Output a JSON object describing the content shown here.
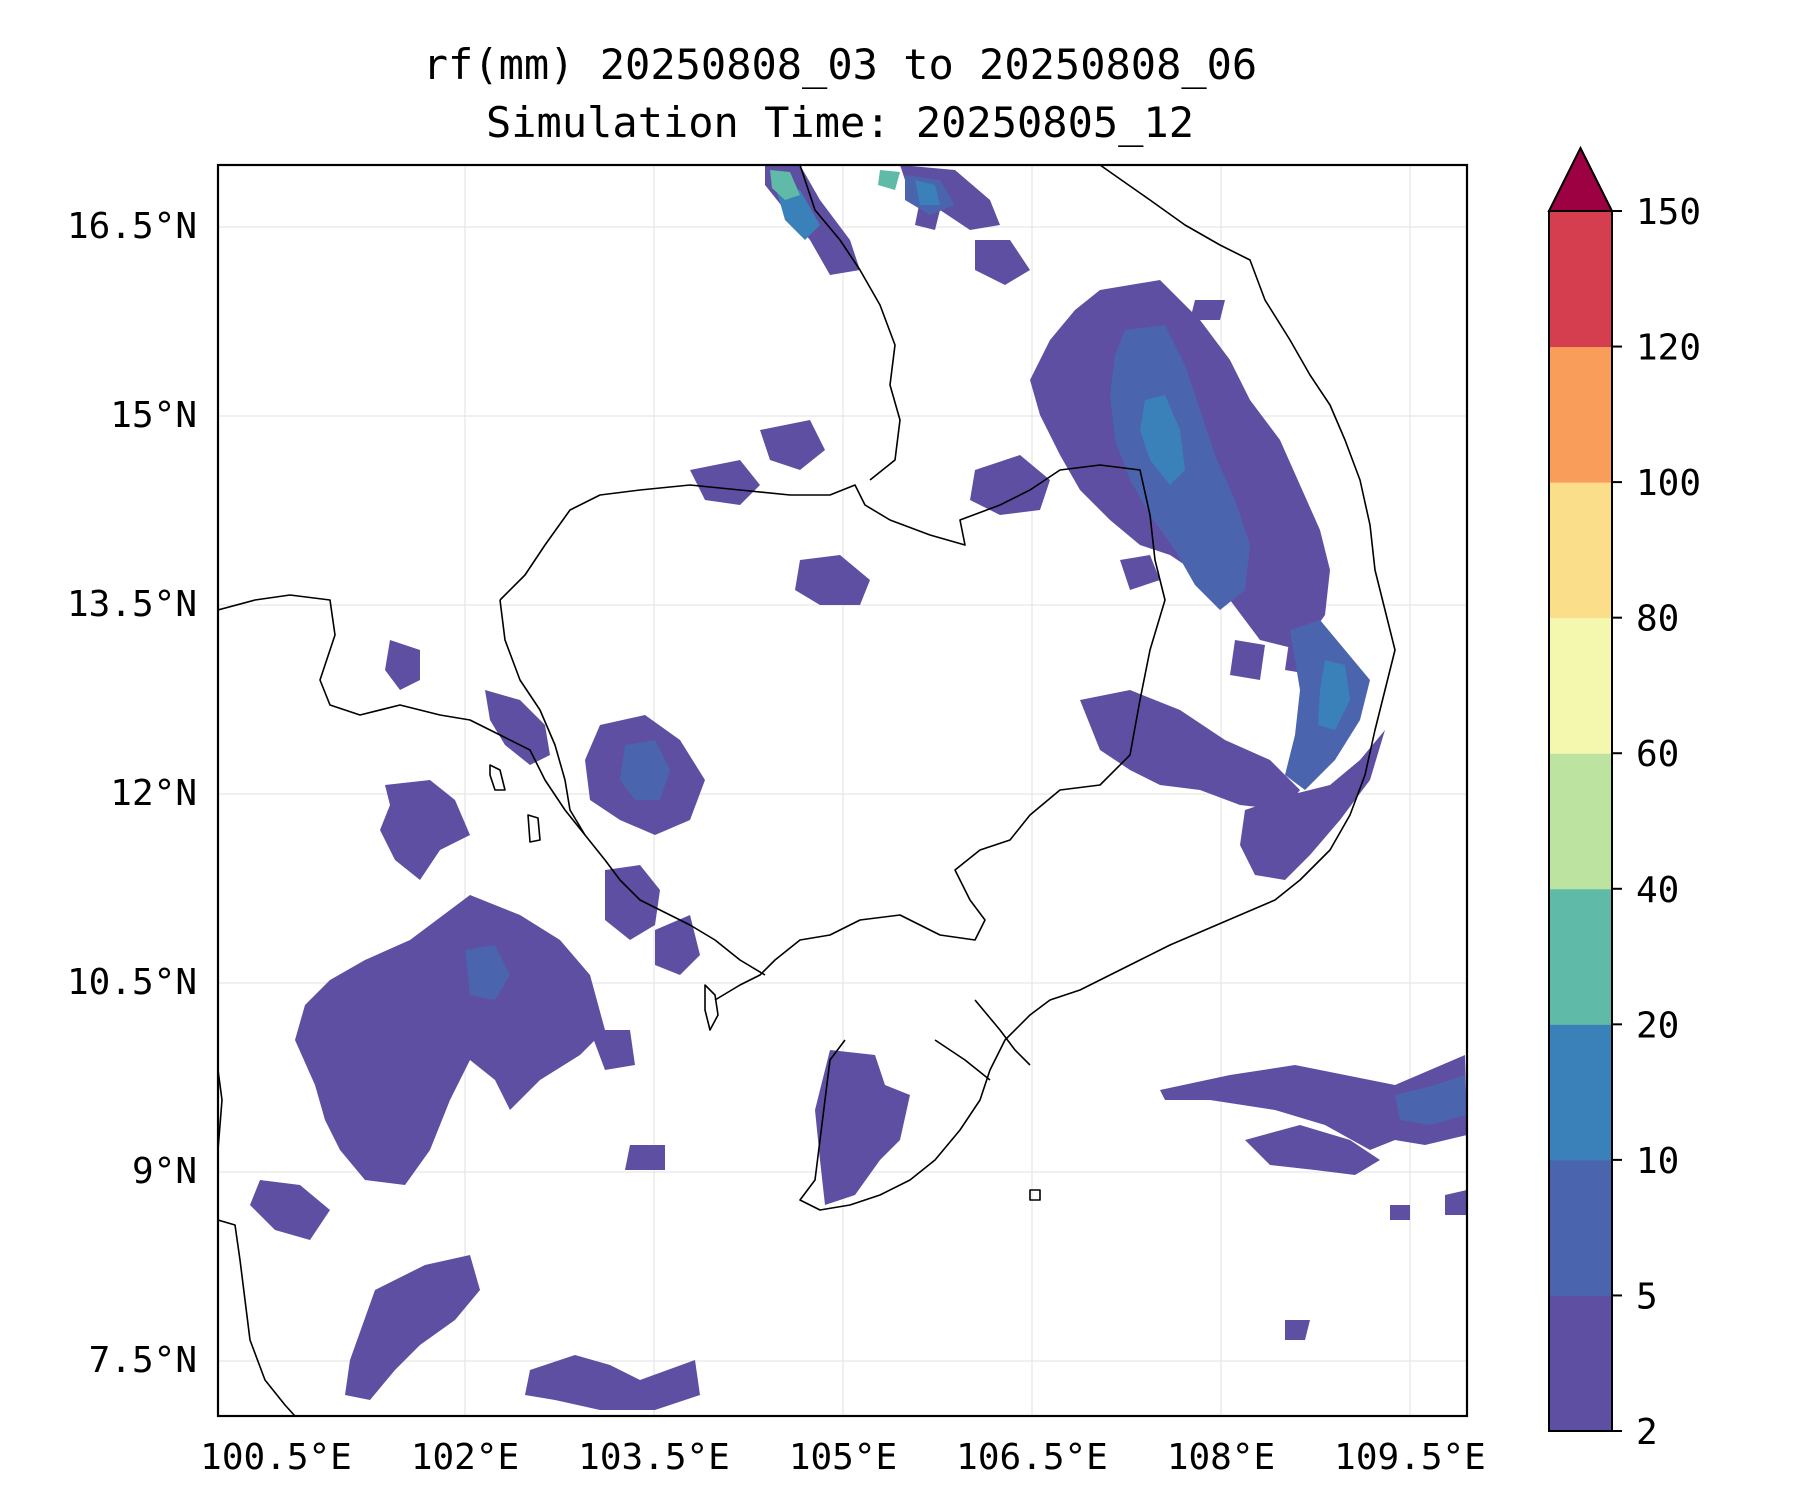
{
  "title_line1": "rf(mm) 20250808_03 to 20250808_06",
  "title_line2": "Simulation Time: 20250805_12",
  "map": {
    "lon_ticks": [
      "100.5°E",
      "102°E",
      "103.5°E",
      "105°E",
      "106.5°E",
      "108°E",
      "109.5°E"
    ],
    "lat_ticks": [
      "16.5°N",
      "15°N",
      "13.5°N",
      "12°N",
      "10.5°N",
      "9°N",
      "7.5°N"
    ],
    "gridlines": true,
    "coastlines_and_borders": true
  },
  "colorbar": {
    "levels": [
      "2",
      "5",
      "10",
      "20",
      "40",
      "60",
      "80",
      "100",
      "120",
      "150"
    ],
    "colors": [
      "#5e4fa2",
      "#4a64ae",
      "#3a80b9",
      "#5fbaa8",
      "#bde3a0",
      "#f4f8ae",
      "#fbde8a",
      "#f99d5a",
      "#d53e4f",
      "#9e0142"
    ],
    "extend": "max"
  },
  "precip_colors": {
    "level_2_5": "#5e4fa2",
    "level_5_10": "#4a64ae",
    "level_10_20": "#3a80b9",
    "level_20_40": "#5fbaa8"
  }
}
